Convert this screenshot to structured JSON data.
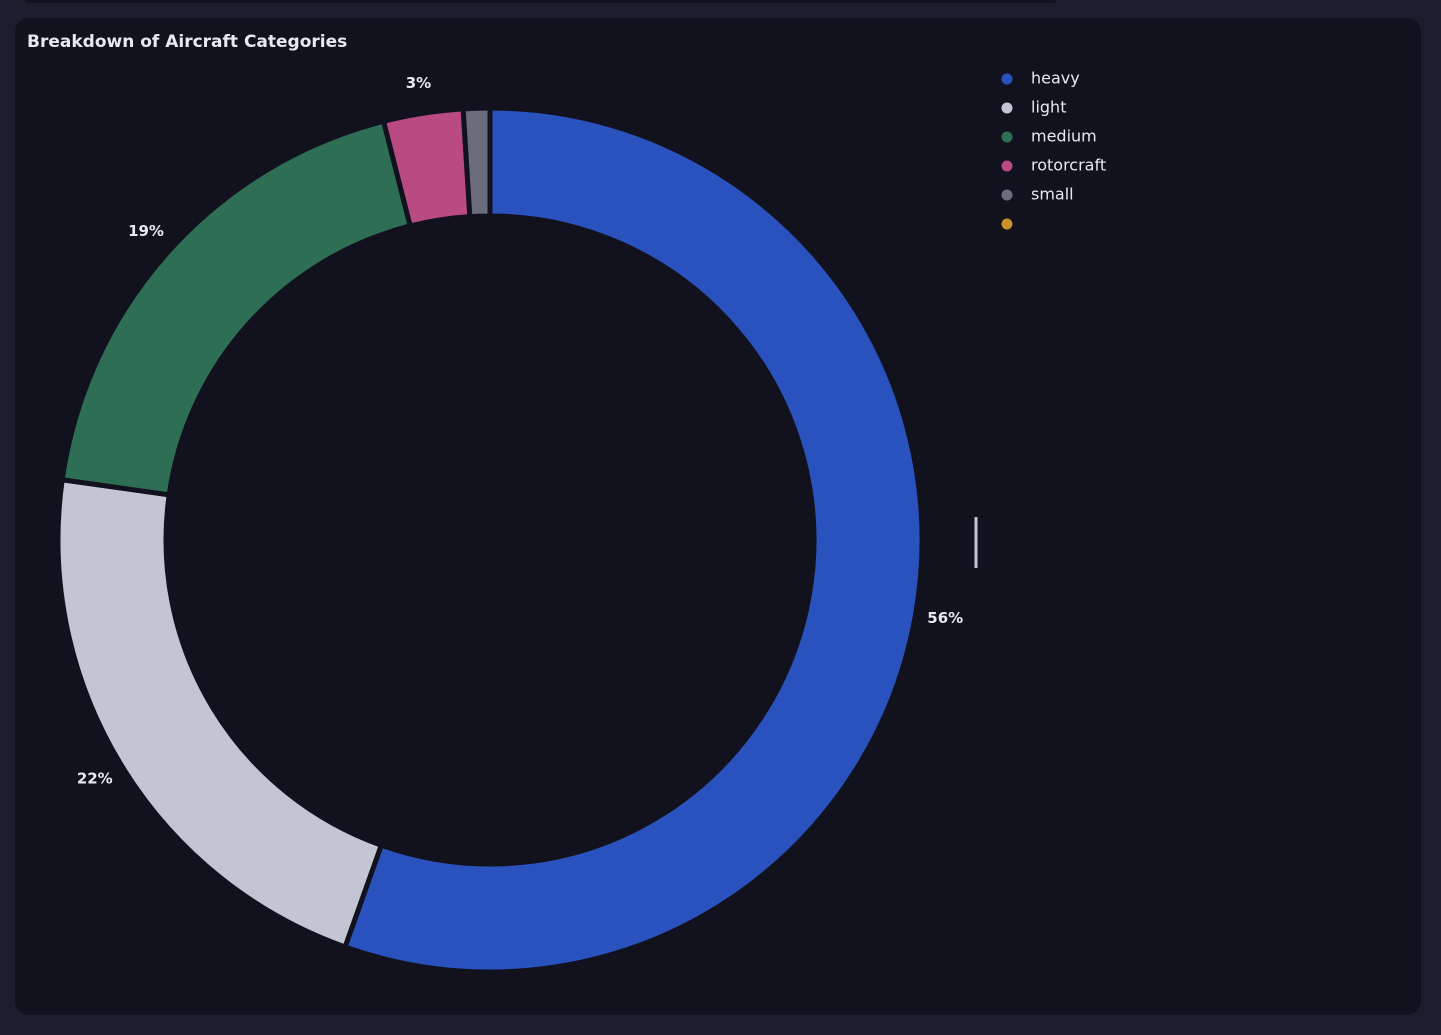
{
  "chart_data": {
    "type": "donut",
    "title": "Breakdown of Aircraft Categories",
    "categories": [
      "heavy",
      "light",
      "medium",
      "rotorcraft",
      "small",
      null
    ],
    "values": [
      56,
      22,
      19,
      3,
      1,
      0
    ],
    "value_labels": [
      "56%",
      "22%",
      "19%",
      "3%",
      null,
      null
    ],
    "colors": [
      "#2a52be",
      "#c4c5d3",
      "#2e6e55",
      "#b94a82",
      "#6b6d7d",
      "#c8922a"
    ],
    "legend": "top-right"
  }
}
